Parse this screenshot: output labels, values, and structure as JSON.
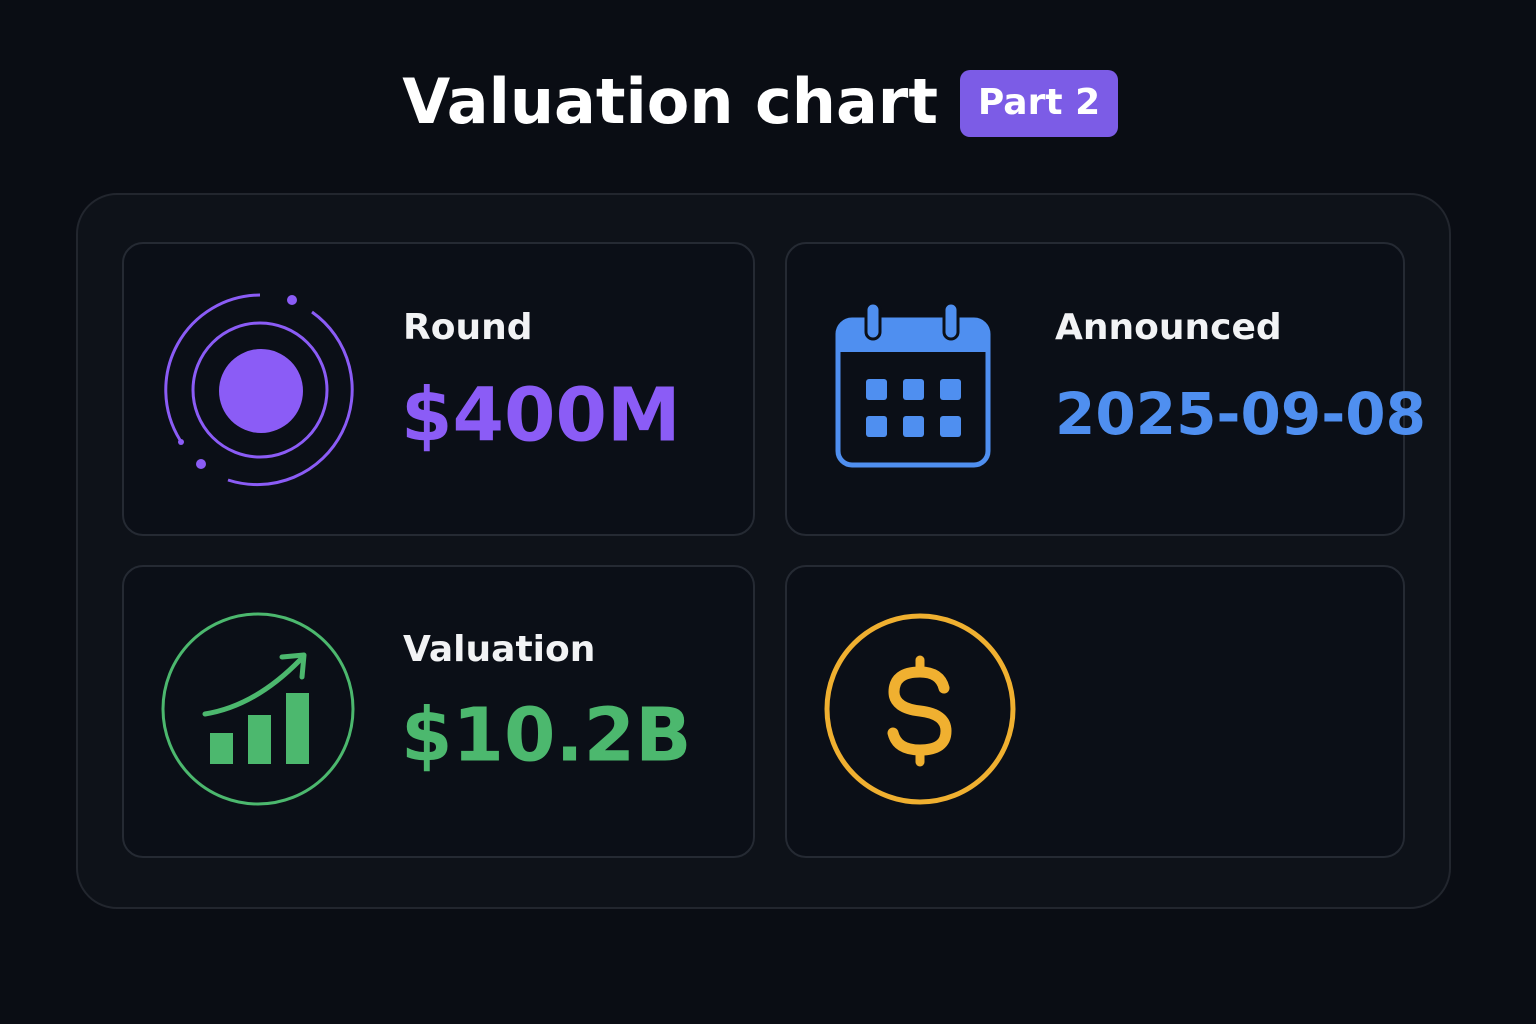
{
  "header": {
    "title": "Valuation chart",
    "badge": "Part 2"
  },
  "cards": [
    {
      "label": "Round",
      "value": "$400M"
    },
    {
      "label": "Announced",
      "value": "2025-09-08"
    },
    {
      "label": "Valuation",
      "value": "$10.2B"
    }
  ]
}
